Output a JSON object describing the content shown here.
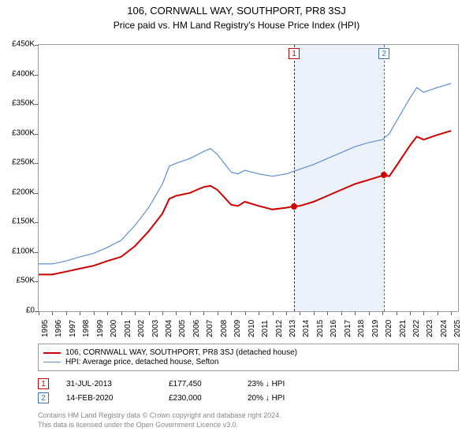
{
  "title": "106, CORNWALL WAY, SOUTHPORT, PR8 3SJ",
  "subtitle": "Price paid vs. HM Land Registry's House Price Index (HPI)",
  "chart": {
    "type": "line",
    "background_color": "#ffffff",
    "border_color": "#999999",
    "y_axis": {
      "min": 0,
      "max": 450000,
      "tick_step": 50000,
      "tick_labels": [
        "£0",
        "£50K",
        "£100K",
        "£150K",
        "£200K",
        "£250K",
        "£300K",
        "£350K",
        "£400K",
        "£450K"
      ],
      "label_fontsize": 10,
      "label_color": "#000000"
    },
    "x_axis": {
      "min": 1995,
      "max": 2025.5,
      "ticks": [
        1995,
        1996,
        1997,
        1998,
        1999,
        2000,
        2001,
        2002,
        2003,
        2004,
        2005,
        2006,
        2007,
        2008,
        2009,
        2010,
        2011,
        2012,
        2013,
        2014,
        2015,
        2016,
        2017,
        2018,
        2019,
        2020,
        2021,
        2022,
        2023,
        2024,
        2025
      ],
      "label_fontsize": 10,
      "label_color": "#000000"
    },
    "shade_band": {
      "x_start": 2013.58,
      "x_end": 2020.12,
      "color": "#edf2fa"
    },
    "marker_lines": [
      {
        "x": 2013.58,
        "color": "#cc0000",
        "label": "1"
      },
      {
        "x": 2020.12,
        "color": "#3b6fb6",
        "label": "2"
      }
    ],
    "series": [
      {
        "name": "price_paid",
        "label": "106, CORNWALL WAY, SOUTHPORT, PR8 3SJ (detached house)",
        "color": "#cc0000",
        "line_width": 2,
        "points": [
          [
            1995,
            62000
          ],
          [
            1996,
            62000
          ],
          [
            1997,
            67000
          ],
          [
            1998,
            72000
          ],
          [
            1999,
            77000
          ],
          [
            2000,
            85000
          ],
          [
            2001,
            92000
          ],
          [
            2002,
            110000
          ],
          [
            2003,
            135000
          ],
          [
            2004,
            165000
          ],
          [
            2004.5,
            190000
          ],
          [
            2005,
            195000
          ],
          [
            2006,
            200000
          ],
          [
            2007,
            210000
          ],
          [
            2007.5,
            212000
          ],
          [
            2008,
            205000
          ],
          [
            2009,
            180000
          ],
          [
            2009.5,
            178000
          ],
          [
            2010,
            185000
          ],
          [
            2011,
            178000
          ],
          [
            2012,
            172000
          ],
          [
            2013,
            175000
          ],
          [
            2013.58,
            177450
          ],
          [
            2014,
            178000
          ],
          [
            2015,
            185000
          ],
          [
            2016,
            195000
          ],
          [
            2017,
            205000
          ],
          [
            2018,
            215000
          ],
          [
            2019,
            222000
          ],
          [
            2020.12,
            230000
          ],
          [
            2020.5,
            228000
          ],
          [
            2021,
            245000
          ],
          [
            2022,
            280000
          ],
          [
            2022.5,
            295000
          ],
          [
            2023,
            290000
          ],
          [
            2024,
            298000
          ],
          [
            2025,
            305000
          ]
        ]
      },
      {
        "name": "hpi",
        "label": "HPI: Average price, detached house, Sefton",
        "color": "#5b8fd6",
        "line_width": 1.2,
        "points": [
          [
            1995,
            80000
          ],
          [
            1996,
            80000
          ],
          [
            1997,
            85000
          ],
          [
            1998,
            92000
          ],
          [
            1999,
            98000
          ],
          [
            2000,
            108000
          ],
          [
            2001,
            120000
          ],
          [
            2002,
            145000
          ],
          [
            2003,
            175000
          ],
          [
            2004,
            215000
          ],
          [
            2004.5,
            245000
          ],
          [
            2005,
            250000
          ],
          [
            2006,
            258000
          ],
          [
            2007,
            270000
          ],
          [
            2007.5,
            275000
          ],
          [
            2008,
            265000
          ],
          [
            2009,
            235000
          ],
          [
            2009.5,
            232000
          ],
          [
            2010,
            238000
          ],
          [
            2011,
            232000
          ],
          [
            2012,
            228000
          ],
          [
            2013,
            232000
          ],
          [
            2014,
            240000
          ],
          [
            2015,
            248000
          ],
          [
            2016,
            258000
          ],
          [
            2017,
            268000
          ],
          [
            2018,
            278000
          ],
          [
            2019,
            285000
          ],
          [
            2020,
            290000
          ],
          [
            2020.5,
            300000
          ],
          [
            2021,
            320000
          ],
          [
            2022,
            360000
          ],
          [
            2022.5,
            378000
          ],
          [
            2023,
            370000
          ],
          [
            2024,
            378000
          ],
          [
            2025,
            385000
          ]
        ]
      }
    ],
    "transaction_points": [
      {
        "x": 2013.58,
        "y": 177450,
        "color": "#cc0000"
      },
      {
        "x": 2020.12,
        "y": 230000,
        "color": "#cc0000"
      }
    ]
  },
  "legend": {
    "items": [
      {
        "color": "#cc0000",
        "width": 2,
        "label": "106, CORNWALL WAY, SOUTHPORT, PR8 3SJ (detached house)"
      },
      {
        "color": "#5b8fd6",
        "width": 1.2,
        "label": "HPI: Average price, detached house, Sefton"
      }
    ]
  },
  "transactions": [
    {
      "n": "1",
      "box_color": "#cc0000",
      "date": "31-JUL-2013",
      "price": "£177,450",
      "delta": "23% ↓ HPI"
    },
    {
      "n": "2",
      "box_color": "#3b6fb6",
      "date": "14-FEB-2020",
      "price": "£230,000",
      "delta": "20% ↓ HPI"
    }
  ],
  "footer": {
    "line1": "Contains HM Land Registry data © Crown copyright and database right 2024.",
    "line2": "This data is licensed under the Open Government Licence v3.0."
  }
}
